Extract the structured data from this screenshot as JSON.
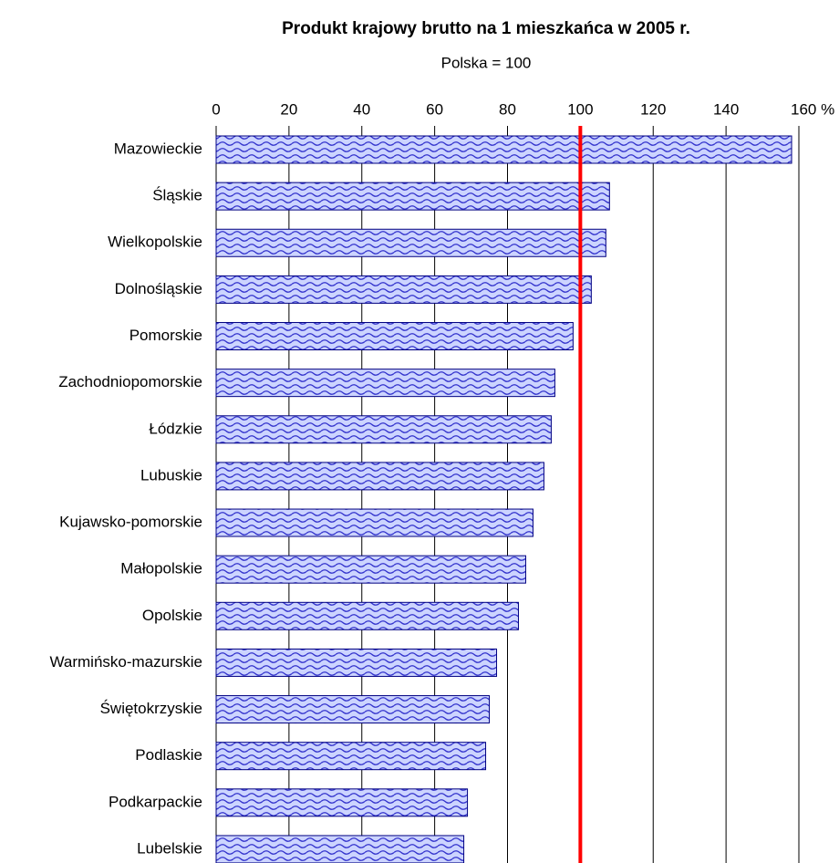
{
  "chart_data": {
    "type": "bar",
    "orientation": "horizontal",
    "title": "Produkt krajowy brutto na 1 mieszkańca w 2005 r.",
    "subtitle": "Polska = 100",
    "categories": [
      "Mazowieckie",
      "Śląskie",
      "Wielkopolskie",
      "Dolnośląskie",
      "Pomorskie",
      "Zachodniopomorskie",
      "Łódzkie",
      "Lubuskie",
      "Kujawsko-pomorskie",
      "Małopolskie",
      "Opolskie",
      "Warmińsko-mazurskie",
      "Świętokrzyskie",
      "Podlaskie",
      "Podkarpackie",
      "Lubelskie"
    ],
    "values": [
      158,
      108,
      107,
      103,
      98,
      93,
      92,
      90,
      87,
      85,
      83,
      77,
      75,
      74,
      69,
      68
    ],
    "color": "#3333cc",
    "xlim": [
      0,
      160
    ],
    "xticks": [
      0,
      20,
      40,
      60,
      80,
      100,
      120,
      140,
      {
        "value": 160,
        "label": "160 %"
      }
    ],
    "grid": true,
    "reference_line": {
      "value": 100,
      "color": "#ff0000"
    }
  }
}
